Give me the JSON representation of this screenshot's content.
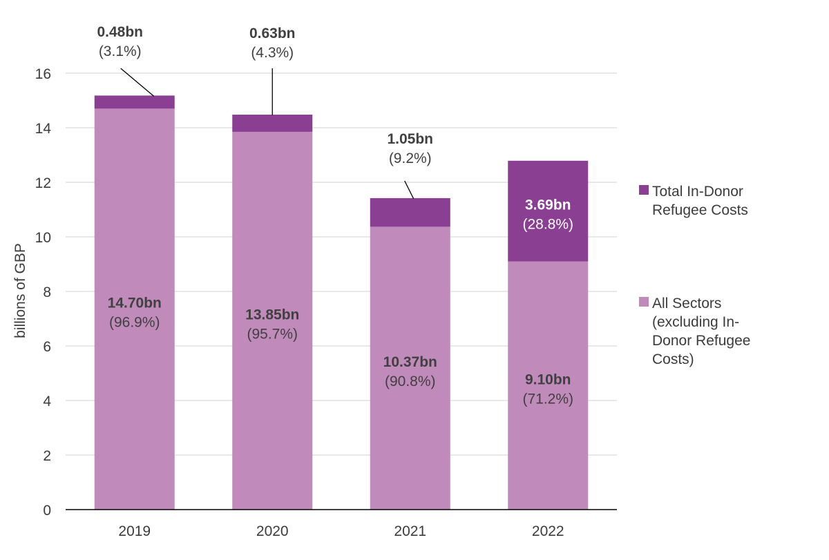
{
  "chart_data": {
    "type": "bar",
    "stacked": true,
    "categories": [
      "2019",
      "2020",
      "2021",
      "2022"
    ],
    "series": [
      {
        "name": "All Sectors (excluding In-Donor Refugee Costs)",
        "legend_lines": [
          "All Sectors",
          "(excluding In-",
          "Donor Refugee",
          "Costs)"
        ],
        "color": "#c08aba",
        "values": [
          14.7,
          13.85,
          10.37,
          9.1
        ],
        "labels": [
          "14.70bn",
          "13.85bn",
          "10.37bn",
          "9.10bn"
        ],
        "pct_labels": [
          "(96.9%)",
          "(95.7%)",
          "(90.8%)",
          "(71.2%)"
        ]
      },
      {
        "name": "Total In-Donor Refugee Costs",
        "legend_lines": [
          "Total In-Donor",
          "Refugee Costs"
        ],
        "color": "#8a3f93",
        "values": [
          0.48,
          0.63,
          1.05,
          3.69
        ],
        "labels": [
          "0.48bn",
          "0.63bn",
          "1.05bn",
          "3.69bn"
        ],
        "pct_labels": [
          "(3.1%)",
          "(4.3%)",
          "(9.2%)",
          "(28.8%)"
        ]
      }
    ],
    "ylabel": "billions of GBP",
    "xlabel": "",
    "ylim": [
      0,
      16
    ],
    "yticks": [
      0,
      2,
      4,
      6,
      8,
      10,
      12,
      14,
      16
    ],
    "grid": true,
    "legend_position": "right"
  }
}
